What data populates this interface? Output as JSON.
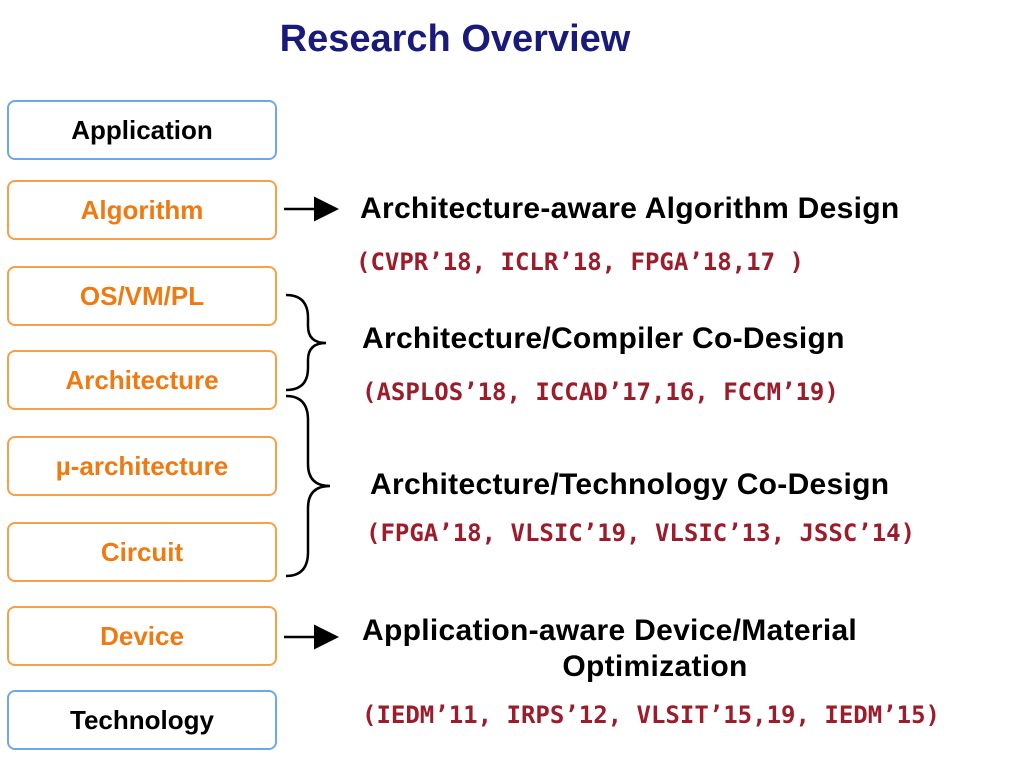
{
  "title": "Research Overview",
  "stack": [
    {
      "label": "Application",
      "style": "blue"
    },
    {
      "label": "Algorithm",
      "style": "orange"
    },
    {
      "label": "OS/VM/PL",
      "style": "orange"
    },
    {
      "label": "Architecture",
      "style": "orange"
    },
    {
      "label": "µ-architecture",
      "style": "orange"
    },
    {
      "label": "Circuit",
      "style": "orange"
    },
    {
      "label": "Device",
      "style": "orange"
    },
    {
      "label": "Technology",
      "style": "blue"
    }
  ],
  "topics": [
    {
      "heading": "Architecture-aware Algorithm Design",
      "refs": "(CVPR’18, ICLR’18, FPGA’18,17 )"
    },
    {
      "heading": "Architecture/Compiler Co-Design",
      "refs": "(ASPLOS’18, ICCAD’17,16, FCCM’19)"
    },
    {
      "heading": "Architecture/Technology Co-Design",
      "refs": "(FPGA’18, VLSIC’19, VLSIC’13, JSSC’14)"
    },
    {
      "heading_line1": "Application-aware Device/Material",
      "heading_line2": "Optimization",
      "refs": "(IEDM’11, IRPS’12, VLSIT’15,19,  IEDM’15)"
    }
  ],
  "colors": {
    "title": "#1a1a7a",
    "box_orange_border": "#f5a04a",
    "box_orange_text": "#f07a12",
    "box_blue_border": "#6fa8e6",
    "refs": "#9b1c2a"
  }
}
